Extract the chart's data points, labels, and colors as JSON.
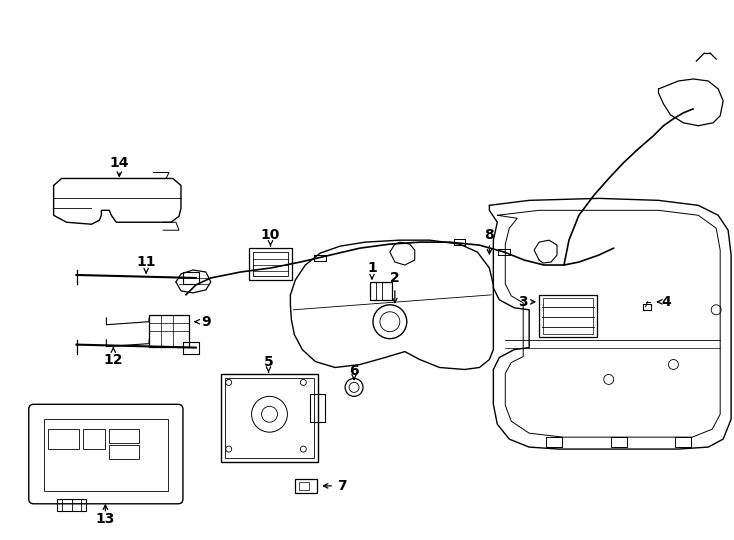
{
  "bg": "#ffffff",
  "lc": "#000000",
  "fig_w": 7.34,
  "fig_h": 5.4,
  "dpi": 100
}
